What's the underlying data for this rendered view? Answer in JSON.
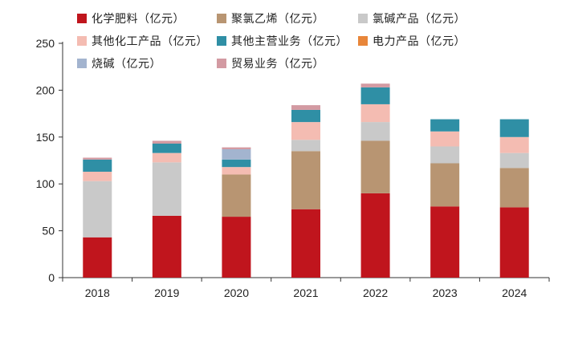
{
  "chart_data": {
    "type": "stacked-bar",
    "title": "",
    "xlabel": "",
    "ylabel": "",
    "ylim": [
      0,
      250
    ],
    "yticks": [
      0,
      50,
      100,
      150,
      200,
      250
    ],
    "grid": false,
    "legend_position": "top",
    "categories": [
      "2018",
      "2019",
      "2020",
      "2021",
      "2022",
      "2023",
      "2024"
    ],
    "series": [
      {
        "name": "化学肥料（亿元）",
        "color": "#c0151d",
        "values": [
          43,
          66,
          65,
          73,
          90,
          76,
          75
        ]
      },
      {
        "name": "聚氯乙烯（亿元）",
        "color": "#b89572",
        "values": [
          0,
          0,
          45,
          62,
          56,
          46,
          42
        ]
      },
      {
        "name": "氯碱产品（亿元）",
        "color": "#c9c9c9",
        "values": [
          60,
          57,
          0,
          12,
          20,
          18,
          16
        ]
      },
      {
        "name": "其他化工产品（亿元）",
        "color": "#f4bcb2",
        "values": [
          10,
          10,
          8,
          19,
          19,
          16,
          17
        ]
      },
      {
        "name": "其他主营业务（亿元）",
        "color": "#2f8fa5",
        "values": [
          13,
          10,
          8,
          13,
          18,
          13,
          19
        ]
      },
      {
        "name": "电力产品（亿元）",
        "color": "#e8863a",
        "values": [
          0,
          0,
          0,
          0,
          0,
          0,
          0
        ]
      },
      {
        "name": "烧碱（亿元）",
        "color": "#a3b4cf",
        "values": [
          0,
          0,
          11,
          0,
          0,
          0,
          0
        ]
      },
      {
        "name": "贸易业务（亿元）",
        "color": "#d39aa2",
        "values": [
          2,
          3,
          2,
          5,
          4,
          0,
          0
        ]
      }
    ]
  }
}
